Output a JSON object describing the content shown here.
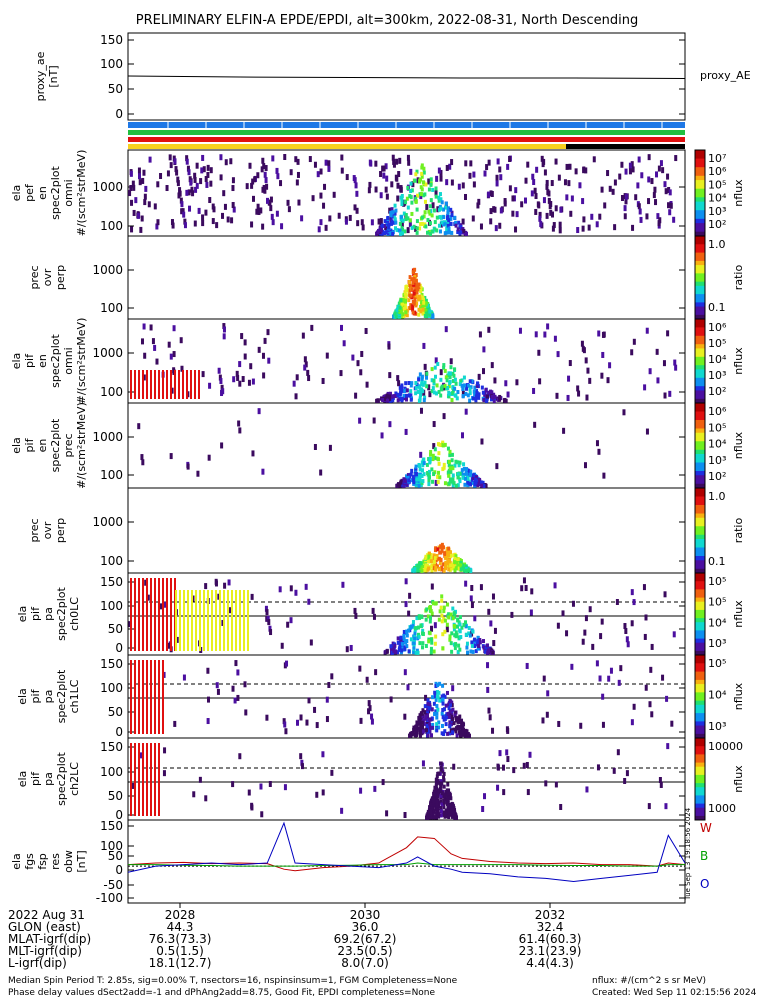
{
  "title": "PRELIMINARY ELFIN-A EPDE/EPDI, alt=300km, 2022-08-31, North Descending",
  "timestamp_vertical": "Tue Sep 13 19:18:56 2024",
  "legend_letters": {
    "w": "W",
    "b": "B",
    "o": "O"
  },
  "colors": {
    "w": "#c00000",
    "b": "#00a000",
    "o": "#0000c0"
  },
  "panels": [
    {
      "id": "proxy_ae",
      "ylabel": [
        "proxy_ae",
        "[nT]"
      ],
      "ticks": [
        "150",
        "100",
        "50",
        "0"
      ],
      "right_label": "proxy_AE"
    },
    {
      "id": "ela_perf_omni",
      "ylabel": [
        "ela",
        "pef",
        "en",
        "spec2plot",
        "omni",
        "#/(scm²strMeV)"
      ],
      "ticks": [
        "1000",
        "100"
      ],
      "cbar_ticks": [
        "10⁷",
        "10⁶",
        "10⁵",
        "10⁴",
        "10³",
        "10²"
      ],
      "cbar_label": "nflux"
    },
    {
      "id": "prec_ovr_perp_e",
      "ylabel": [
        "prec",
        "ovr",
        "perp"
      ],
      "ticks": [
        "1000",
        "100"
      ],
      "cbar_ticks": [
        "1.0",
        "0.1"
      ],
      "cbar_label": "ratio"
    },
    {
      "id": "ela_pif_omni",
      "ylabel": [
        "ela",
        "pif",
        "en",
        "spec2plot",
        "omni",
        "#/(scm²strMeV)"
      ],
      "ticks": [
        "1000",
        "100"
      ],
      "cbar_ticks": [
        "10⁶",
        "10⁵",
        "10⁴",
        "10³",
        "10²"
      ],
      "cbar_label": "nflux"
    },
    {
      "id": "ela_pif_prec",
      "ylabel": [
        "ela",
        "pif",
        "en",
        "spec2plot",
        "prec",
        "#/(scm²strMeV)"
      ],
      "ticks": [
        "1000",
        "100"
      ],
      "cbar_ticks": [
        "10⁶",
        "10⁵",
        "10⁴",
        "10³",
        "10²"
      ],
      "cbar_label": "nflux"
    },
    {
      "id": "prec_ovr_perp_i",
      "ylabel": [
        "prec",
        "ovr",
        "perp"
      ],
      "ticks": [
        "1000",
        "100"
      ],
      "cbar_ticks": [
        "1.0",
        "0.1"
      ],
      "cbar_label": "ratio"
    },
    {
      "id": "pa_ch0",
      "ylabel": [
        "ela",
        "pif",
        "pa",
        "spec2plot",
        "ch0LC"
      ],
      "ticks": [
        "150",
        "100",
        "50",
        "0"
      ],
      "cbar_ticks": [
        "10⁵",
        "10⁵",
        "10⁴",
        "10³"
      ],
      "cbar_label": "nflux"
    },
    {
      "id": "pa_ch1",
      "ylabel": [
        "ela",
        "pif",
        "pa",
        "spec2plot",
        "ch1LC"
      ],
      "ticks": [
        "150",
        "100",
        "50",
        "0"
      ],
      "cbar_ticks": [
        "10⁵",
        "10⁴",
        "10³"
      ],
      "cbar_label": "nflux"
    },
    {
      "id": "pa_ch2",
      "ylabel": [
        "ela",
        "pif",
        "pa",
        "spec2plot",
        "ch2LC"
      ],
      "ticks": [
        "150",
        "100",
        "50",
        "0"
      ],
      "cbar_ticks": [
        "10000",
        "1000"
      ],
      "cbar_label": "nflux"
    },
    {
      "id": "fgs",
      "ylabel": [
        "ela",
        "fgs",
        "fsp",
        "res",
        "obw",
        "[nT]"
      ],
      "ticks": [
        "150",
        "100",
        "50",
        "0",
        "-50",
        "-100"
      ]
    }
  ],
  "xaxis": {
    "row_labels": [
      "2022 Aug 31",
      "GLON (east)",
      "MLAT-igrf(dip)",
      "MLT-igrf(dip)",
      "L-igrf(dip)"
    ],
    "columns": [
      {
        "time": "2028",
        "glon": "44.3",
        "mlat": "76.3(73.3)",
        "mlt": "0.5(1.5)",
        "l": "18.1(12.7)"
      },
      {
        "time": "2030",
        "glon": "36.0",
        "mlat": "69.2(67.2)",
        "mlt": "23.5(0.5)",
        "l": "8.0(7.0)"
      },
      {
        "time": "2032",
        "glon": "32.4",
        "mlat": "61.4(60.3)",
        "mlt": "23.1(23.9)",
        "l": "4.4(4.3)"
      }
    ]
  },
  "footer": {
    "line1": "Median Spin Period T: 2.85s, sig=0.00% T, nsectors=16, nspinsinsum=1, FGM Completeness=None",
    "line2": "Phase delay values dSect2add=-1 and dPhAng2add=8.75, Good Fit, EPDI completeness=None",
    "right1": "nflux: #/(cm^2 s sr MeV)",
    "right2": "Created: Wed Sep 11 02:15:56 2024"
  },
  "chart_data": {
    "type": "line",
    "x_ticks": [
      "2028",
      "2030",
      "2032"
    ],
    "proxy_ae": {
      "ylim": [
        0,
        150
      ],
      "x_norm": [
        0.0,
        0.2,
        0.4,
        0.6,
        0.8,
        1.0
      ],
      "values": [
        77,
        75,
        74,
        73,
        73,
        72
      ]
    },
    "fgs": {
      "ylim": [
        -120,
        150
      ],
      "x_norm": [
        0.0,
        0.05,
        0.1,
        0.15,
        0.2,
        0.25,
        0.28,
        0.3,
        0.35,
        0.4,
        0.45,
        0.5,
        0.52,
        0.55,
        0.58,
        0.6,
        0.65,
        0.7,
        0.75,
        0.8,
        0.85,
        0.9,
        0.95,
        0.97,
        1.0
      ],
      "series": [
        {
          "name": "W",
          "color": "#c00000",
          "values": [
            5,
            10,
            12,
            8,
            10,
            8,
            -10,
            -15,
            -5,
            0,
            10,
            60,
            95,
            90,
            40,
            25,
            15,
            10,
            8,
            10,
            5,
            5,
            0,
            10,
            5
          ]
        },
        {
          "name": "B",
          "color": "#00a000",
          "values": [
            5,
            5,
            3,
            2,
            0,
            0,
            0,
            0,
            2,
            3,
            5,
            5,
            10,
            5,
            5,
            5,
            5,
            5,
            3,
            2,
            2,
            0,
            0,
            5,
            5
          ]
        },
        {
          "name": "O",
          "color": "#0000c0",
          "values": [
            -20,
            0,
            5,
            10,
            5,
            10,
            140,
            10,
            5,
            0,
            -5,
            10,
            30,
            0,
            -10,
            -20,
            -25,
            -35,
            -40,
            -50,
            -40,
            -30,
            -20,
            100,
            10
          ]
        }
      ]
    }
  }
}
